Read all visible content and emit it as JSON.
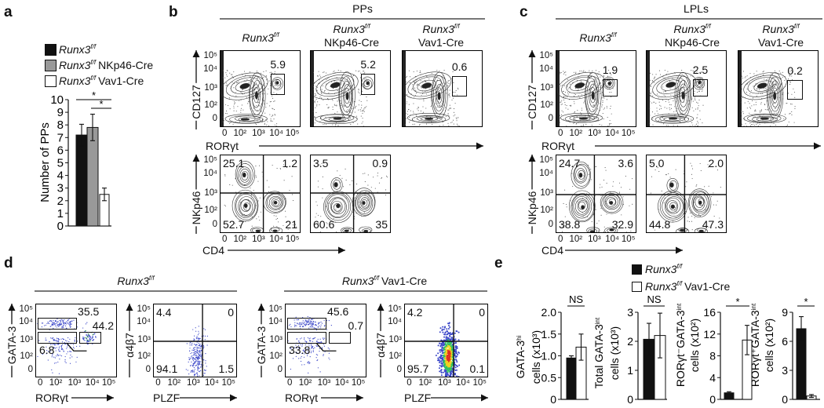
{
  "panel_labels": {
    "a": "a",
    "b": "b",
    "c": "c",
    "d": "d",
    "e": "e"
  },
  "genotypes": {
    "wt": {
      "gene": "Runx3",
      "sup": "f/f",
      "suffix": ""
    },
    "nkp46": {
      "gene": "Runx3",
      "sup": "f/f",
      "suffix": "NKp46-Cre"
    },
    "vav1": {
      "gene": "Runx3",
      "sup": "f/f",
      "suffix": "Vav1-Cre"
    }
  },
  "flow_axes": {
    "xticks": [
      "0",
      "10²",
      "10³",
      "10⁴",
      "10⁵"
    ],
    "yticks": [
      "10⁵",
      "10⁴",
      "10³",
      "10²",
      "0"
    ],
    "rorgt": "RORγt",
    "cd127": "CD127",
    "cd4": "CD4",
    "nkp46": "NKp46",
    "gata3": "GATA-3",
    "a4b7": "α4β7",
    "plzf": "PLZF"
  },
  "panel_b": {
    "title": "PPs",
    "gates": [
      "5.9",
      "5.2",
      "0.6"
    ],
    "quadrants": [
      [
        "25.1",
        "1.2",
        "52.7",
        "21"
      ],
      [
        "3.5",
        "0.9",
        "60.6",
        "35"
      ]
    ]
  },
  "panel_c": {
    "title": "LPLs",
    "gates": [
      "1.9",
      "2.5",
      "0.2"
    ],
    "quadrants": [
      [
        "24.7",
        "3.6",
        "38.8",
        "32.9"
      ],
      [
        "5.0",
        "2.0",
        "44.8",
        "47.3"
      ]
    ]
  },
  "panel_d": {
    "groups": [
      {
        "gates": [
          "35.5",
          "44.2",
          "6.8"
        ],
        "quadrants": [
          "4.4",
          "0",
          "94.1",
          "1.5"
        ]
      },
      {
        "gates": [
          "45.6",
          "0.7",
          "33.8"
        ],
        "quadrants": [
          "4.2",
          "0",
          "95.7",
          "0.1"
        ]
      }
    ]
  },
  "colors": {
    "control": "#111111",
    "nkp46": "#999999",
    "vav1": "#ffffff",
    "header_rule": "#777777",
    "dots": "#3a46c8"
  },
  "chart_data": [
    {
      "type": "bar",
      "panel": "a",
      "ylabel": {
        "line1": "Number of PPs",
        "sup": "",
        "line2": ""
      },
      "categories": [
        "Runx3f/f",
        "Runx3f/f NKp46-Cre",
        "Runx3f/f Vav1-Cre"
      ],
      "values": [
        7.2,
        7.8,
        2.5
      ],
      "errors": [
        0.85,
        1.05,
        0.5
      ],
      "ylim": [
        0,
        10
      ],
      "yticks": [
        "0",
        "1",
        "2",
        "3",
        "4",
        "5",
        "6",
        "7",
        "8",
        "9",
        "10"
      ],
      "significance": [
        {
          "pair": [
            0,
            2
          ],
          "label": "*"
        },
        {
          "pair": [
            1,
            2
          ],
          "label": "*"
        }
      ],
      "legend": "top-left"
    },
    {
      "type": "bar",
      "panel": "e",
      "ylabel": {
        "line1": "GATA-3",
        "sup": "hi",
        "line2": "cells (x10³)"
      },
      "categories": [
        "Runx3f/f",
        "Runx3f/f Vav1-Cre"
      ],
      "values": [
        0.95,
        1.2
      ],
      "errors": [
        0.05,
        0.3
      ],
      "ylim": [
        0,
        2
      ],
      "yticks": [
        "0",
        "0.5",
        "1.0",
        "1.5",
        "2.0"
      ],
      "significance": [
        {
          "pair": [
            0,
            1
          ],
          "label": "NS"
        }
      ]
    },
    {
      "type": "bar",
      "panel": "e",
      "ylabel": {
        "line1": "Total GATA-3",
        "sup": "int",
        "line2": "cells (x10³)"
      },
      "categories": [
        "Runx3f/f",
        "Runx3f/f Vav1-Cre"
      ],
      "values": [
        2.07,
        2.2
      ],
      "errors": [
        0.55,
        0.77
      ],
      "ylim": [
        0,
        3
      ],
      "yticks": [
        "0",
        "1",
        "2",
        "3"
      ],
      "significance": [
        {
          "pair": [
            0,
            1
          ],
          "label": "NS"
        }
      ]
    },
    {
      "type": "bar",
      "panel": "e",
      "ylabel": {
        "line1": "RORγt⁻GATA-3",
        "sup": "int",
        "line2": "cells (x10²)"
      },
      "categories": [
        "Runx3f/f",
        "Runx3f/f Vav1-Cre"
      ],
      "values": [
        1.2,
        10.9
      ],
      "errors": [
        0.2,
        2.7
      ],
      "ylim": [
        0,
        16
      ],
      "yticks": [
        "0",
        "4",
        "8",
        "12",
        "16"
      ],
      "significance": [
        {
          "pair": [
            0,
            1
          ],
          "label": "*"
        }
      ]
    },
    {
      "type": "bar",
      "panel": "e",
      "ylabel": {
        "line1": "RORγt⁺GATA-3",
        "sup": "int",
        "line2": "cells (x10²)"
      },
      "categories": [
        "Runx3f/f",
        "Runx3f/f Vav1-Cre"
      ],
      "values": [
        7.3,
        0.35
      ],
      "errors": [
        1.25,
        0.15
      ],
      "ylim": [
        0,
        9
      ],
      "yticks": [
        "0",
        "3",
        "6",
        "9"
      ],
      "significance": [
        {
          "pair": [
            0,
            1
          ],
          "label": "*"
        }
      ]
    }
  ]
}
